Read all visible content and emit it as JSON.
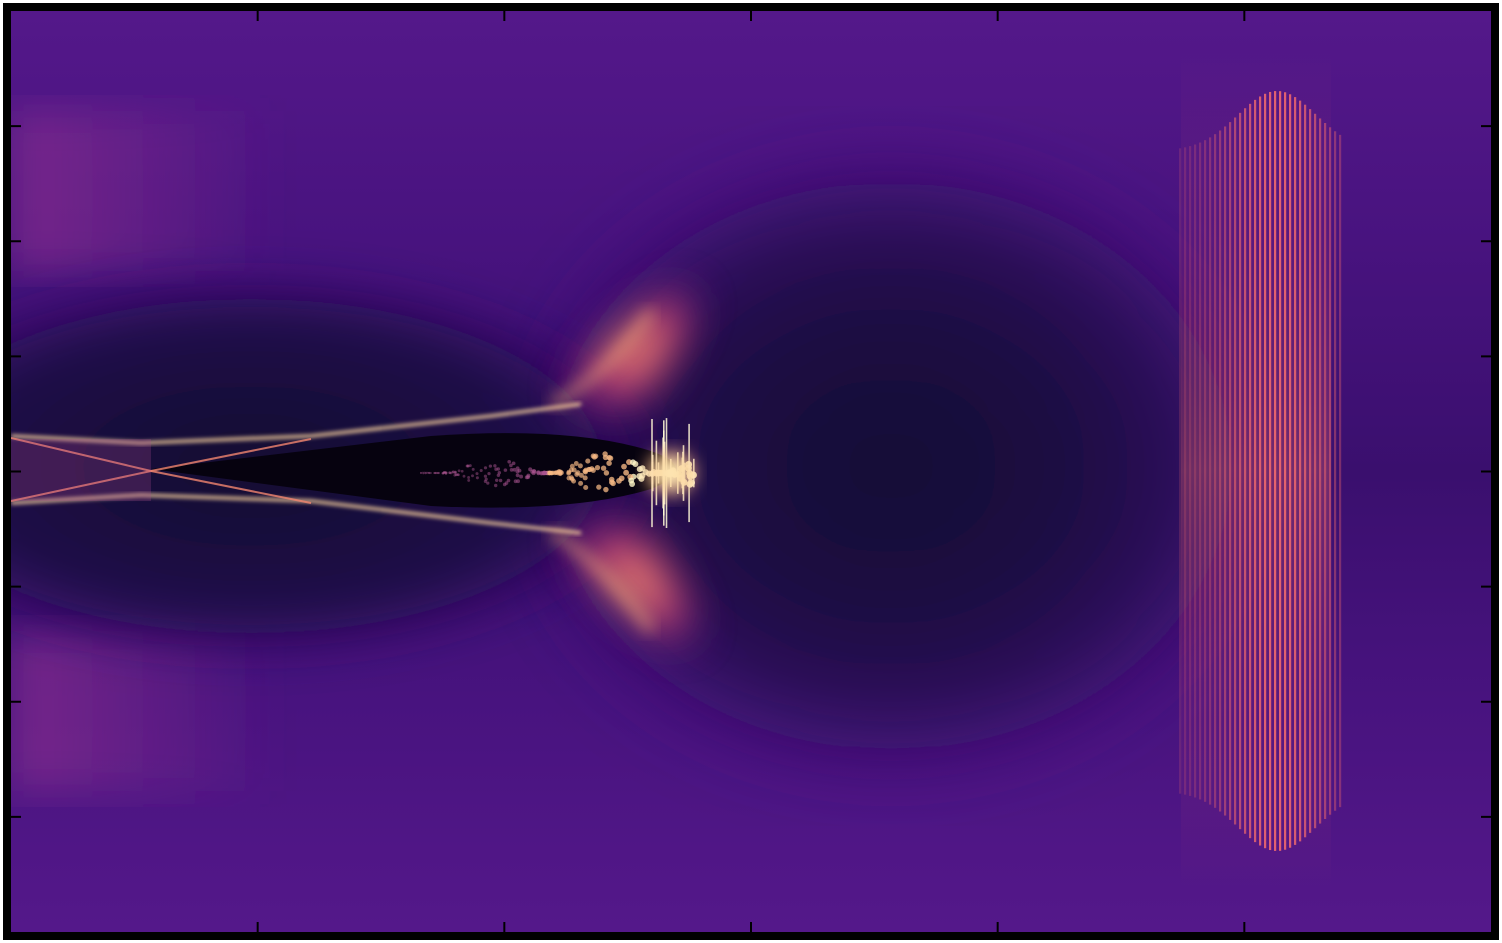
{
  "figure": {
    "colormap": "magma",
    "colors": {
      "background": "#4a1382",
      "edge_glow": "#6c2497",
      "cavity": "#1a0c3c",
      "bubble_core": "#05020f",
      "hot": "#fffbd0",
      "bright": "#fdb77b",
      "mid": "#e4566c",
      "pulse": "#f2606e",
      "frame": "#000000"
    },
    "axes": {
      "x_ticks": 5,
      "y_ticks": 7,
      "tick_labels": "none",
      "axis_labels": "none",
      "title": "none"
    },
    "features": [
      "laser-wakefield-bubble",
      "electron-bunch",
      "driver-pulse-fringes"
    ]
  }
}
